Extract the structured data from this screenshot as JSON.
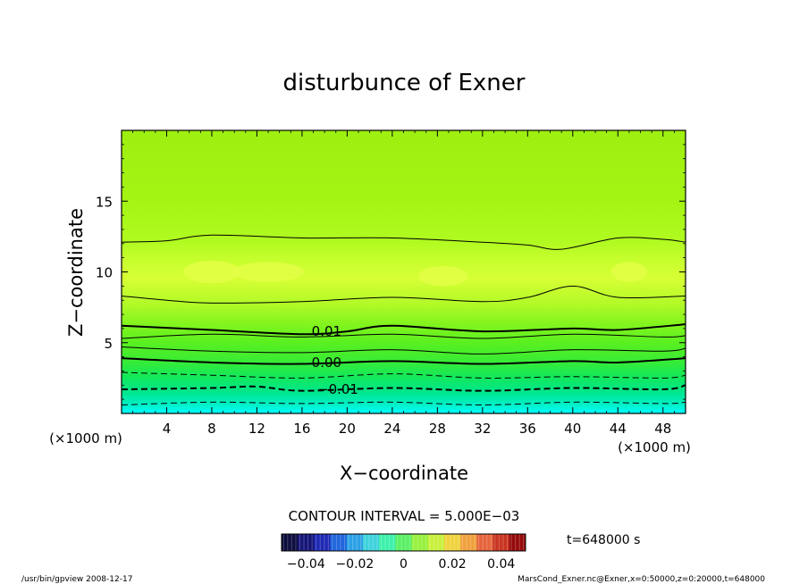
{
  "chart_data": {
    "type": "contour",
    "title": "disturbunce of Exner",
    "xlabel": "X−coordinate",
    "ylabel": "Z−coordinate",
    "x_unit_label": "(×1000 m)",
    "y_unit_label": "(×1000 m)",
    "xlim": [
      0,
      50
    ],
    "ylim": [
      0,
      20
    ],
    "x_ticks": [
      4,
      8,
      12,
      16,
      20,
      24,
      28,
      32,
      36,
      40,
      44,
      48
    ],
    "y_ticks": [
      5,
      10,
      15
    ],
    "x_tick_labels": [
      "4",
      "8",
      "12",
      "16",
      "20",
      "24",
      "28",
      "32",
      "36",
      "40",
      "44",
      "48"
    ],
    "y_tick_labels": [
      "5",
      "10",
      "15"
    ],
    "contour_interval_text": "CONTOUR INTERVAL = 5.000E−03",
    "time_text": "t=648000 s",
    "colorbar": {
      "range": [
        -0.05,
        0.05
      ],
      "tick_values": [
        -0.04,
        -0.02,
        0,
        0.02,
        0.04
      ],
      "tick_labels": [
        "−0.04",
        "−0.02",
        "0",
        "0.02",
        "0.04"
      ]
    },
    "contour_labels": [
      {
        "text": "0.01",
        "x": 17.7,
        "z": 5.8
      },
      {
        "text": "0.00",
        "x": 17.7,
        "z": 3.6
      },
      {
        "text": "−0.01",
        "x": 18.7,
        "z": 1.7
      }
    ],
    "contours": [
      {
        "level": 0.015,
        "style": "thin",
        "points": [
          [
            0,
            5.3
          ],
          [
            8,
            5.6
          ],
          [
            16,
            5.4
          ],
          [
            24,
            5.6
          ],
          [
            32,
            5.3
          ],
          [
            40,
            5.6
          ],
          [
            48,
            5.4
          ],
          [
            50,
            5.5
          ]
        ]
      },
      {
        "level": 0.01,
        "style": "thick",
        "points": [
          [
            0,
            6.2
          ],
          [
            8,
            5.9
          ],
          [
            16,
            5.6
          ],
          [
            20,
            5.8
          ],
          [
            24,
            6.2
          ],
          [
            32,
            5.8
          ],
          [
            40,
            6.0
          ],
          [
            44,
            5.9
          ],
          [
            50,
            6.3
          ]
        ]
      },
      {
        "level": 0.005,
        "style": "thin",
        "points": [
          [
            0,
            4.7
          ],
          [
            8,
            4.4
          ],
          [
            16,
            4.3
          ],
          [
            24,
            4.5
          ],
          [
            32,
            4.2
          ],
          [
            40,
            4.5
          ],
          [
            48,
            4.4
          ],
          [
            50,
            4.6
          ]
        ]
      },
      {
        "level": 0.0,
        "style": "thick",
        "points": [
          [
            0,
            3.9
          ],
          [
            8,
            3.6
          ],
          [
            16,
            3.5
          ],
          [
            24,
            3.7
          ],
          [
            32,
            3.5
          ],
          [
            40,
            3.7
          ],
          [
            44,
            3.6
          ],
          [
            50,
            3.9
          ]
        ]
      },
      {
        "level": -0.005,
        "style": "dashed",
        "points": [
          [
            0,
            2.9
          ],
          [
            8,
            2.7
          ],
          [
            16,
            2.5
          ],
          [
            24,
            2.8
          ],
          [
            32,
            2.5
          ],
          [
            40,
            2.6
          ],
          [
            48,
            2.5
          ],
          [
            50,
            2.7
          ]
        ]
      },
      {
        "level": -0.01,
        "style": "dashed-thick",
        "points": [
          [
            0,
            1.7
          ],
          [
            8,
            1.8
          ],
          [
            12,
            1.9
          ],
          [
            16,
            1.6
          ],
          [
            24,
            1.8
          ],
          [
            32,
            1.6
          ],
          [
            40,
            1.8
          ],
          [
            48,
            1.7
          ],
          [
            50,
            2.0
          ]
        ]
      },
      {
        "level": -0.015,
        "style": "dashed",
        "points": [
          [
            0,
            0.6
          ],
          [
            8,
            0.8
          ],
          [
            16,
            0.7
          ],
          [
            24,
            0.8
          ],
          [
            32,
            0.6
          ],
          [
            40,
            0.8
          ],
          [
            48,
            0.7
          ],
          [
            50,
            0.8
          ]
        ]
      },
      {
        "level": 0.02,
        "style": "thin",
        "points": [
          [
            0,
            8.3
          ],
          [
            4,
            8.0
          ],
          [
            8,
            7.8
          ],
          [
            16,
            7.9
          ],
          [
            24,
            8.2
          ],
          [
            32,
            7.9
          ],
          [
            36,
            8.2
          ],
          [
            40,
            9.0
          ],
          [
            44,
            8.2
          ],
          [
            50,
            8.3
          ]
        ]
      },
      {
        "level": 0.02,
        "style": "thin",
        "points": [
          [
            0,
            12.1
          ],
          [
            4,
            12.2
          ],
          [
            8,
            12.6
          ],
          [
            16,
            12.4
          ],
          [
            24,
            12.4
          ],
          [
            32,
            12.1
          ],
          [
            36,
            11.9
          ],
          [
            39,
            11.6
          ],
          [
            44,
            12.4
          ],
          [
            48,
            12.3
          ],
          [
            50,
            12.1
          ]
        ]
      }
    ],
    "field_bands": [
      {
        "z": 0.0,
        "color": "#00ffff"
      },
      {
        "z": 0.6,
        "color": "#00f0c8"
      },
      {
        "z": 1.5,
        "color": "#00e68c"
      },
      {
        "z": 2.6,
        "color": "#14e85a"
      },
      {
        "z": 3.8,
        "color": "#3cec32"
      },
      {
        "z": 5.0,
        "color": "#5af020"
      },
      {
        "z": 6.3,
        "color": "#82f41e"
      },
      {
        "z": 7.8,
        "color": "#b4fa28"
      },
      {
        "z": 9.5,
        "color": "#d6ff34"
      },
      {
        "z": 10.5,
        "color": "#ccff30"
      },
      {
        "z": 12.2,
        "color": "#b0fa20"
      },
      {
        "z": 15.0,
        "color": "#a4f414"
      },
      {
        "z": 20.0,
        "color": "#9ef010"
      }
    ],
    "colorbar_colors": [
      "#0a0a3c",
      "#141478",
      "#1e28b4",
      "#1e64dc",
      "#2ca0e6",
      "#3cd2dc",
      "#3cf0aa",
      "#5af064",
      "#96f03c",
      "#c8f03c",
      "#f0d23c",
      "#f0a03c",
      "#e6643c",
      "#c8321e",
      "#960a0a"
    ]
  },
  "footer": {
    "left": "/usr/bin/gpview  2008-12-17",
    "right": "MarsCond_Exner.nc@Exner,x=0:50000,z=0:20000,t=648000"
  }
}
